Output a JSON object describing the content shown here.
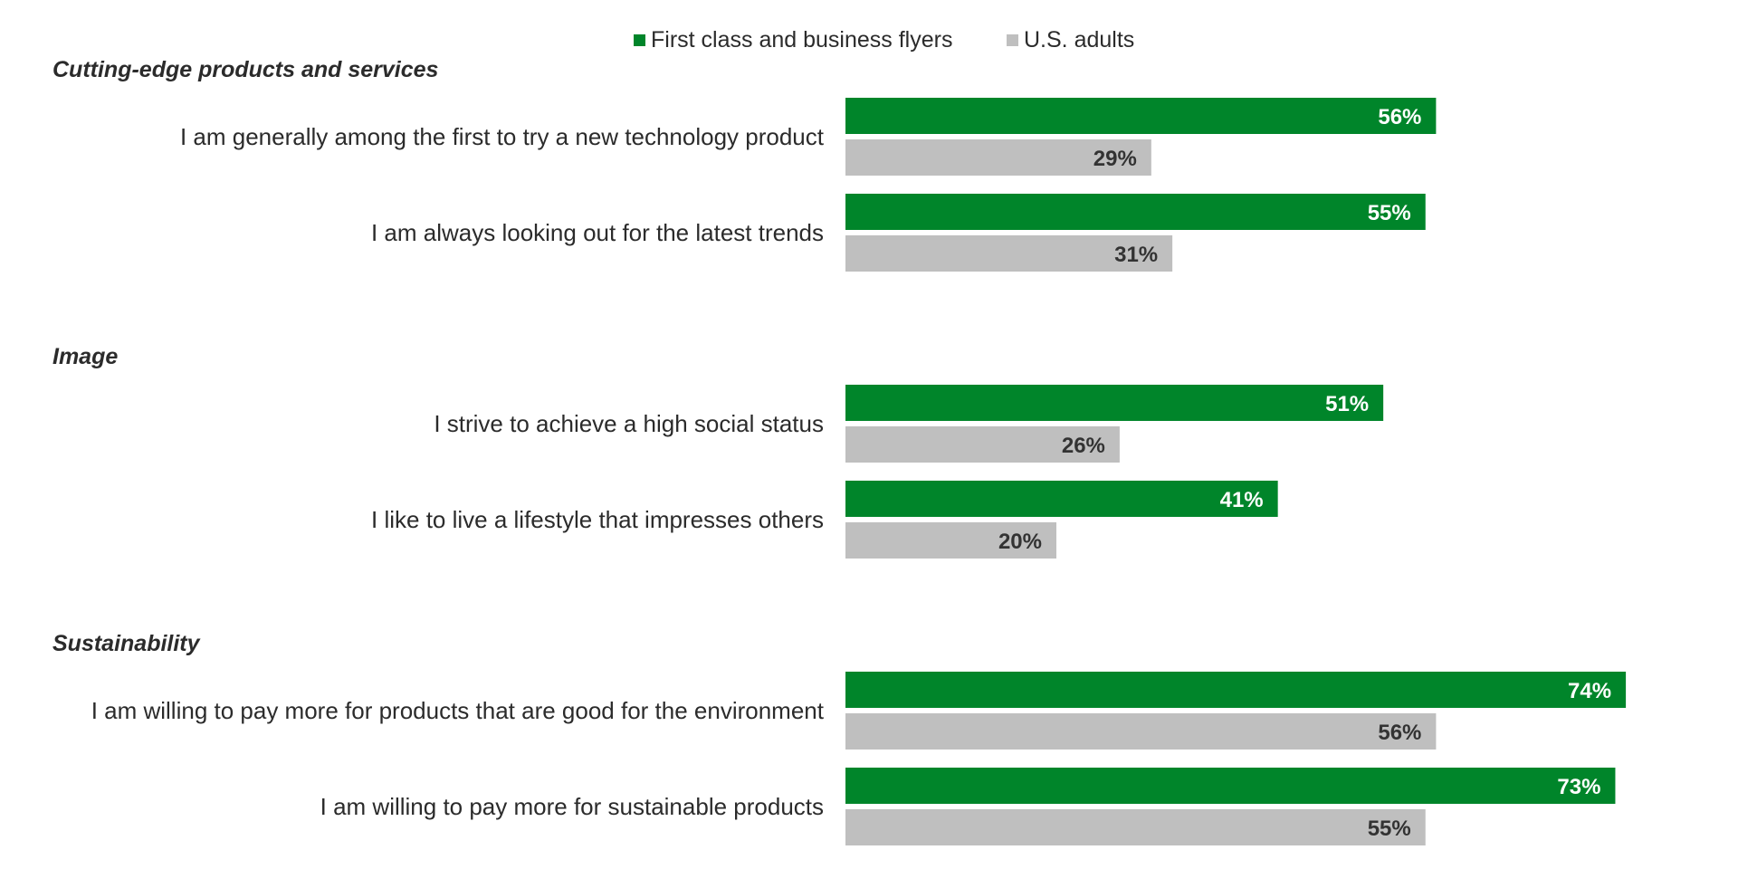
{
  "chart_data": {
    "type": "bar",
    "orientation": "horizontal",
    "legend": {
      "placement": "top-center",
      "items": [
        {
          "name": "First class and business flyers",
          "color": "#00852a"
        },
        {
          "name": "U.S. adults",
          "color": "#bfbfbf"
        }
      ]
    },
    "series": [
      {
        "name": "First class and business flyers",
        "color": "#00852a",
        "label_color": "#ffffff"
      },
      {
        "name": "U.S. adults",
        "color": "#bfbfbf",
        "label_color": "#333333"
      }
    ],
    "groups": [
      {
        "title": "Cutting-edge products and services",
        "rows": [
          {
            "label": "I am generally among the first to try a new technology product",
            "values": [
              56,
              29
            ],
            "value_labels": [
              "56%",
              "29%"
            ]
          },
          {
            "label": "I am always looking out for the latest trends",
            "values": [
              55,
              31
            ],
            "value_labels": [
              "55%",
              "31%"
            ]
          }
        ]
      },
      {
        "title": "Image",
        "rows": [
          {
            "label": "I strive to achieve a high social status",
            "values": [
              51,
              26
            ],
            "value_labels": [
              "51%",
              "26%"
            ]
          },
          {
            "label": "I like to live a lifestyle that impresses others",
            "values": [
              41,
              20
            ],
            "value_labels": [
              "41%",
              "20%"
            ]
          }
        ]
      },
      {
        "title": "Sustainability",
        "rows": [
          {
            "label": "I am willing to pay more for products that are good for the environment",
            "values": [
              74,
              56
            ],
            "value_labels": [
              "74%",
              "56%"
            ]
          },
          {
            "label": "I am willing to pay more for sustainable products",
            "values": [
              73,
              55
            ],
            "value_labels": [
              "73%",
              "55%"
            ]
          }
        ]
      }
    ],
    "xlim": [
      0,
      100
    ],
    "grid": false,
    "axes_visible": false
  }
}
